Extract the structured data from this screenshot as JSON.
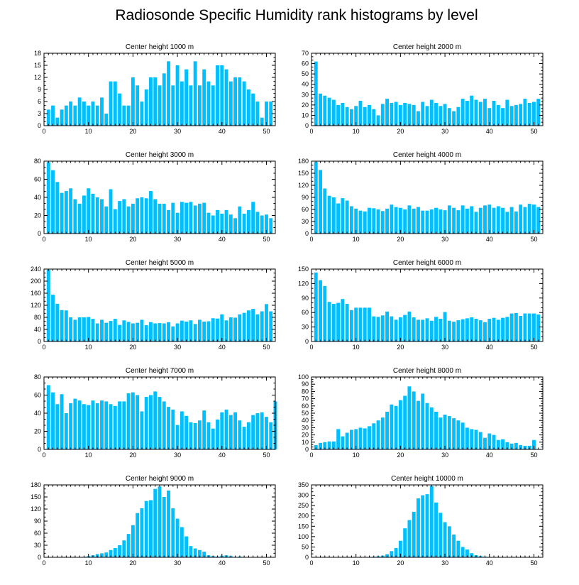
{
  "figure": {
    "title": "Radiosonde Specific Humidity rank histograms by level",
    "bar_color": "#00BFFF"
  },
  "chart_data": [
    {
      "type": "bar",
      "title": "Center height 1000 m",
      "xlabel": "",
      "ylabel": "",
      "xlim": [
        0,
        52
      ],
      "ylim": [
        0,
        18
      ],
      "xticks": [
        0,
        10,
        20,
        30,
        40,
        50
      ],
      "yticks": [
        0,
        3,
        6,
        9,
        12,
        15,
        18
      ],
      "values": [
        4,
        5,
        2,
        4,
        5,
        6,
        5,
        7,
        6,
        5,
        6,
        5,
        7,
        3,
        11,
        11,
        8,
        5,
        5,
        12,
        10,
        6,
        9,
        12,
        12,
        10,
        13,
        16,
        10,
        15,
        11,
        14,
        10,
        16,
        10,
        14,
        11,
        10,
        15,
        15,
        14,
        11,
        12,
        12,
        11,
        9,
        8,
        6,
        2,
        6,
        6
      ]
    },
    {
      "type": "bar",
      "title": "Center height 2000 m",
      "xlabel": "",
      "ylabel": "",
      "xlim": [
        0,
        52
      ],
      "ylim": [
        0,
        70
      ],
      "xticks": [
        0,
        10,
        20,
        30,
        40,
        50
      ],
      "yticks": [
        0,
        10,
        20,
        30,
        40,
        50,
        60,
        70
      ],
      "values": [
        62,
        31,
        29,
        27,
        25,
        20,
        22,
        18,
        16,
        19,
        24,
        18,
        20,
        16,
        10,
        21,
        26,
        22,
        23,
        20,
        22,
        21,
        20,
        14,
        23,
        19,
        25,
        22,
        19,
        21,
        17,
        14,
        18,
        26,
        24,
        29,
        25,
        23,
        26,
        17,
        24,
        20,
        17,
        25,
        19,
        20,
        21,
        26,
        22,
        23,
        26
      ]
    },
    {
      "type": "bar",
      "title": "Center height 3000 m",
      "xlabel": "",
      "ylabel": "",
      "xlim": [
        0,
        52
      ],
      "ylim": [
        0,
        80
      ],
      "xticks": [
        0,
        10,
        20,
        30,
        40,
        50
      ],
      "yticks": [
        0,
        20,
        40,
        60,
        80
      ],
      "values": [
        79,
        70,
        57,
        45,
        47,
        50,
        38,
        33,
        42,
        50,
        44,
        40,
        38,
        30,
        49,
        27,
        36,
        38,
        30,
        33,
        39,
        40,
        39,
        47,
        38,
        33,
        33,
        26,
        34,
        23,
        35,
        34,
        35,
        31,
        33,
        34,
        23,
        20,
        26,
        22,
        26,
        21,
        17,
        30,
        22,
        26,
        35,
        24,
        20,
        21,
        17
      ]
    },
    {
      "type": "bar",
      "title": "Center height 4000 m",
      "xlabel": "",
      "ylabel": "",
      "xlim": [
        0,
        52
      ],
      "ylim": [
        0,
        180
      ],
      "xticks": [
        0,
        10,
        20,
        30,
        40,
        50
      ],
      "yticks": [
        0,
        30,
        60,
        90,
        120,
        150,
        180
      ],
      "values": [
        178,
        158,
        112,
        94,
        90,
        75,
        88,
        82,
        68,
        62,
        57,
        55,
        64,
        63,
        60,
        56,
        62,
        72,
        66,
        64,
        60,
        70,
        62,
        66,
        57,
        57,
        60,
        64,
        60,
        58,
        70,
        64,
        58,
        70,
        62,
        68,
        54,
        64,
        70,
        72,
        64,
        68,
        64,
        54,
        66,
        55,
        72,
        66,
        74,
        72,
        66
      ]
    },
    {
      "type": "bar",
      "title": "Center height 5000 m",
      "xlabel": "",
      "ylabel": "",
      "xlim": [
        0,
        52
      ],
      "ylim": [
        0,
        240
      ],
      "xticks": [
        0,
        10,
        20,
        30,
        40,
        50
      ],
      "yticks": [
        0,
        40,
        80,
        120,
        160,
        200,
        240
      ],
      "values": [
        238,
        155,
        125,
        104,
        103,
        80,
        72,
        80,
        80,
        81,
        75,
        60,
        72,
        62,
        68,
        75,
        55,
        70,
        65,
        60,
        62,
        72,
        54,
        64,
        60,
        61,
        60,
        64,
        50,
        60,
        69,
        66,
        70,
        58,
        72,
        66,
        67,
        77,
        76,
        90,
        70,
        80,
        79,
        90,
        95,
        103,
        108,
        90,
        100,
        124,
        100
      ]
    },
    {
      "type": "bar",
      "title": "Center height 6000 m",
      "xlabel": "",
      "ylabel": "",
      "xlim": [
        0,
        52
      ],
      "ylim": [
        0,
        150
      ],
      "xticks": [
        0,
        10,
        20,
        30,
        40,
        50
      ],
      "yticks": [
        0,
        30,
        60,
        90,
        120,
        150
      ],
      "values": [
        143,
        127,
        115,
        82,
        78,
        80,
        88,
        78,
        65,
        70,
        70,
        70,
        70,
        52,
        51,
        54,
        62,
        52,
        45,
        50,
        55,
        62,
        50,
        45,
        45,
        48,
        43,
        51,
        47,
        61,
        43,
        41,
        44,
        46,
        48,
        50,
        47,
        44,
        40,
        47,
        49,
        45,
        49,
        51,
        58,
        59,
        53,
        58,
        58,
        58,
        56
      ]
    },
    {
      "type": "bar",
      "title": "Center height 7000 m",
      "xlabel": "",
      "ylabel": "",
      "xlim": [
        0,
        52
      ],
      "ylim": [
        0,
        80
      ],
      "xticks": [
        0,
        10,
        20,
        30,
        40,
        50
      ],
      "yticks": [
        0,
        20,
        40,
        60,
        80
      ],
      "values": [
        71,
        63,
        50,
        61,
        40,
        51,
        56,
        54,
        50,
        49,
        54,
        51,
        54,
        53,
        50,
        48,
        53,
        53,
        62,
        63,
        60,
        42,
        58,
        60,
        64,
        58,
        53,
        47,
        44,
        27,
        42,
        37,
        30,
        29,
        32,
        43,
        30,
        23,
        33,
        41,
        44,
        38,
        41,
        32,
        25,
        30,
        38,
        40,
        41,
        36,
        30,
        53
      ]
    },
    {
      "type": "bar",
      "title": "Center height 8000 m",
      "xlabel": "",
      "ylabel": "",
      "xlim": [
        0,
        52
      ],
      "ylim": [
        0,
        100
      ],
      "xticks": [
        0,
        10,
        20,
        30,
        40,
        50
      ],
      "yticks": [
        0,
        10,
        20,
        30,
        40,
        50,
        60,
        70,
        80,
        90,
        100
      ],
      "values": [
        6,
        9,
        10,
        11,
        11,
        28,
        18,
        23,
        27,
        28,
        30,
        29,
        32,
        36,
        40,
        44,
        52,
        62,
        60,
        68,
        74,
        87,
        80,
        67,
        77,
        64,
        58,
        52,
        44,
        48,
        46,
        43,
        40,
        37,
        30,
        28,
        27,
        24,
        16,
        22,
        20,
        13,
        14,
        10,
        8,
        9,
        6,
        5,
        5,
        13
      ]
    },
    {
      "type": "bar",
      "title": "Center height 9000 m",
      "xlabel": "",
      "ylabel": "",
      "xlim": [
        0,
        52
      ],
      "ylim": [
        0,
        180
      ],
      "xticks": [
        0,
        10,
        20,
        30,
        40,
        50
      ],
      "yticks": [
        0,
        30,
        60,
        90,
        120,
        150,
        180
      ],
      "values": [
        0,
        0,
        0,
        0,
        1,
        0,
        0,
        0,
        1,
        3,
        5,
        8,
        10,
        12,
        18,
        23,
        30,
        42,
        58,
        80,
        110,
        122,
        140,
        142,
        170,
        176,
        150,
        166,
        122,
        96,
        75,
        52,
        28,
        22,
        18,
        14,
        5,
        3,
        2,
        4,
        5,
        3,
        1,
        2,
        0,
        0,
        1,
        0,
        0,
        0,
        0
      ]
    },
    {
      "type": "bar",
      "title": "Center height 10000 m",
      "xlabel": "",
      "ylabel": "",
      "xlim": [
        0,
        52
      ],
      "ylim": [
        0,
        350
      ],
      "xticks": [
        0,
        10,
        20,
        30,
        40,
        50
      ],
      "yticks": [
        0,
        50,
        100,
        150,
        200,
        250,
        300,
        350
      ],
      "values": [
        0,
        0,
        0,
        0,
        0,
        0,
        0,
        0,
        0,
        0,
        1,
        1,
        2,
        3,
        5,
        8,
        15,
        30,
        45,
        80,
        140,
        180,
        220,
        285,
        300,
        305,
        345,
        265,
        215,
        170,
        150,
        110,
        80,
        50,
        38,
        20,
        10,
        6,
        3,
        2,
        1,
        1,
        0,
        0,
        0,
        0,
        0,
        0,
        0,
        0,
        0
      ]
    }
  ]
}
